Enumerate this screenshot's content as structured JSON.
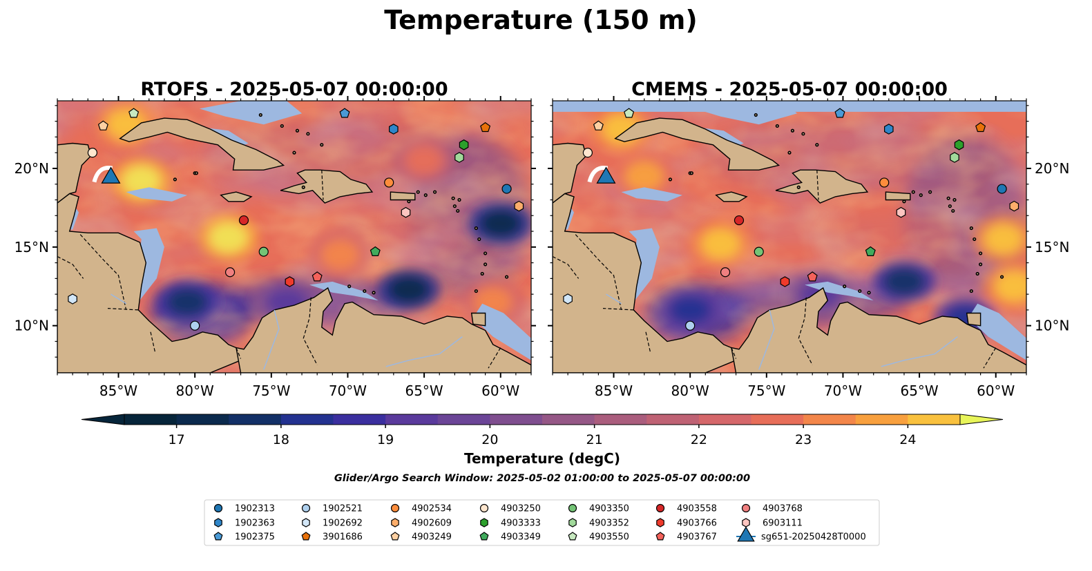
{
  "figure_title": "Temperature (150 m)",
  "search_window": "Glider/Argo Search Window: 2025-05-02 01:00:00 to 2025-05-07 00:00:00",
  "colors": {
    "background": "#ffffff",
    "land": "#d2b48c",
    "shallow": "#9db8e0",
    "scale_low": "#06253a",
    "scale_high": "#e8f55a"
  },
  "chart_data": [
    {
      "type": "heatmap",
      "name": "rtofs",
      "title": "RTOFS - 2025-05-07 00:00:00",
      "variable": "Temperature",
      "depth": "150 m",
      "xticks": [
        "85°W",
        "80°W",
        "75°W",
        "70°W",
        "65°W",
        "60°W"
      ],
      "xtick_values": [
        -85,
        -80,
        -75,
        -70,
        -65,
        -60
      ],
      "yticks": [
        "20°N",
        "15°N",
        "10°N"
      ],
      "ytick_values": [
        20,
        15,
        10
      ],
      "xlim": [
        -89,
        -58
      ],
      "ylim": [
        7,
        24.3
      ],
      "ytick_side": "left",
      "warm_cores": [
        {
          "lon": -83.5,
          "lat": 19.2,
          "value": 24.5
        },
        {
          "lon": -77.8,
          "lat": 15.6,
          "value": 24.5
        },
        {
          "lon": -84.5,
          "lat": 22.8,
          "value": 24.2
        },
        {
          "lon": -70.5,
          "lat": 14.5,
          "value": 23.2
        },
        {
          "lon": -65.0,
          "lat": 20.5,
          "value": 22.5
        },
        {
          "lon": -60.5,
          "lat": 11.5,
          "value": 23.0
        }
      ],
      "cold_cores": [
        {
          "lon": -66.0,
          "lat": 12.3,
          "value": 17.0
        },
        {
          "lon": -60.0,
          "lat": 16.5,
          "value": 17.0
        },
        {
          "lon": -80.5,
          "lat": 11.5,
          "value": 17.5
        },
        {
          "lon": -74.0,
          "lat": 11.5,
          "value": 19.0
        }
      ]
    },
    {
      "type": "heatmap",
      "name": "cmems",
      "title": "CMEMS - 2025-05-07 00:00:00",
      "variable": "Temperature",
      "depth": "150 m",
      "xticks": [
        "85°W",
        "80°W",
        "75°W",
        "70°W",
        "65°W",
        "60°W"
      ],
      "xtick_values": [
        -85,
        -80,
        -75,
        -70,
        -65,
        -60
      ],
      "yticks": [
        "20°N",
        "15°N",
        "10°N"
      ],
      "ytick_values": [
        20,
        15,
        10
      ],
      "xlim": [
        -89,
        -58
      ],
      "ylim": [
        7,
        24.3
      ],
      "ytick_side": "right",
      "warm_cores": [
        {
          "lon": -83.0,
          "lat": 19.5,
          "value": 23.5
        },
        {
          "lon": -78.0,
          "lat": 15.2,
          "value": 24.2
        },
        {
          "lon": -84.5,
          "lat": 22.5,
          "value": 24.0
        },
        {
          "lon": -58.8,
          "lat": 12.5,
          "value": 24.2
        },
        {
          "lon": -59.5,
          "lat": 15.5,
          "value": 24.0
        }
      ],
      "cold_cores": [
        {
          "lon": -66.0,
          "lat": 12.8,
          "value": 17.5
        },
        {
          "lon": -80.0,
          "lat": 11.0,
          "value": 18.0
        },
        {
          "lon": -71.5,
          "lat": 12.0,
          "value": 19.0
        },
        {
          "lon": -62.0,
          "lat": 10.5,
          "value": 18.0
        }
      ]
    },
    {
      "type": "colorbar",
      "name": "colorbar",
      "label": "Temperature (degC)",
      "ticks": [
        17,
        18,
        19,
        20,
        21,
        22,
        23,
        24
      ],
      "tick_labels": [
        "17",
        "18",
        "19",
        "20",
        "21",
        "22",
        "23",
        "24"
      ],
      "min": 16.5,
      "max": 24.5,
      "step": 0.5,
      "extend": "both"
    }
  ],
  "markers": [
    {
      "id": "1902313",
      "shape": "circle",
      "color": "#1f77b4",
      "lon": -59.6,
      "lat": 18.7
    },
    {
      "id": "1902363",
      "shape": "hexagon",
      "color": "#2f86c9",
      "lon": -67.0,
      "lat": 22.5
    },
    {
      "id": "1902375",
      "shape": "pentagon",
      "color": "#4a9ad6",
      "lon": -70.2,
      "lat": 23.5
    },
    {
      "id": "1902521",
      "shape": "circle",
      "color": "#aed0ee",
      "lon": -80.0,
      "lat": 10.0
    },
    {
      "id": "1902692",
      "shape": "hexagon",
      "color": "#d2e6f7",
      "lon": -88.0,
      "lat": 11.7
    },
    {
      "id": "3901686",
      "shape": "pentagon",
      "color": "#e8710a",
      "lon": -61.0,
      "lat": 22.6
    },
    {
      "id": "4902534",
      "shape": "circle",
      "color": "#fd8d3c",
      "lon": -67.3,
      "lat": 19.1
    },
    {
      "id": "4902609",
      "shape": "hexagon",
      "color": "#fdae6b",
      "lon": -58.8,
      "lat": 17.6
    },
    {
      "id": "4903249",
      "shape": "pentagon",
      "color": "#fdd0a2",
      "lon": -86.0,
      "lat": 22.7
    },
    {
      "id": "4903250",
      "shape": "circle",
      "color": "#fee6ce",
      "lon": -86.7,
      "lat": 21.0
    },
    {
      "id": "4903333",
      "shape": "hexagon",
      "color": "#2ca02c",
      "lon": -62.4,
      "lat": 21.5
    },
    {
      "id": "4903349",
      "shape": "pentagon",
      "color": "#41ab5d",
      "lon": -68.2,
      "lat": 14.7
    },
    {
      "id": "4903350",
      "shape": "circle",
      "color": "#74c476",
      "lon": -75.5,
      "lat": 14.7
    },
    {
      "id": "4903352",
      "shape": "hexagon",
      "color": "#a1d99b",
      "lon": -62.7,
      "lat": 20.7
    },
    {
      "id": "4903550",
      "shape": "pentagon",
      "color": "#c7e9c0",
      "lon": -84.0,
      "lat": 23.5
    },
    {
      "id": "4903558",
      "shape": "circle",
      "color": "#d62728",
      "lon": -76.8,
      "lat": 16.7
    },
    {
      "id": "4903766",
      "shape": "hexagon",
      "color": "#ef3b2c",
      "lon": -73.8,
      "lat": 12.8
    },
    {
      "id": "4903767",
      "shape": "pentagon",
      "color": "#f4625b",
      "lon": -72.0,
      "lat": 13.1
    },
    {
      "id": "4903768",
      "shape": "circle",
      "color": "#f08080",
      "lon": -77.7,
      "lat": 13.4
    },
    {
      "id": "6903111",
      "shape": "hexagon",
      "color": "#fcc5c0",
      "lon": -66.2,
      "lat": 17.2
    },
    {
      "id": "sg651-20250428T0000",
      "shape": "triangle",
      "color": "#1f77b4",
      "lon": -85.5,
      "lat": 19.4,
      "track": true
    }
  ],
  "legend": {
    "columns": [
      [
        "1902313",
        "1902363",
        "1902375"
      ],
      [
        "1902521",
        "1902692",
        "3901686"
      ],
      [
        "4902534",
        "4902609",
        "4903249"
      ],
      [
        "4903250",
        "4903333",
        "4903349"
      ],
      [
        "4903350",
        "4903352",
        "4903550"
      ],
      [
        "4903558",
        "4903766",
        "4903767"
      ],
      [
        "4903768",
        "6903111",
        "sg651-20250428T0000"
      ]
    ]
  }
}
